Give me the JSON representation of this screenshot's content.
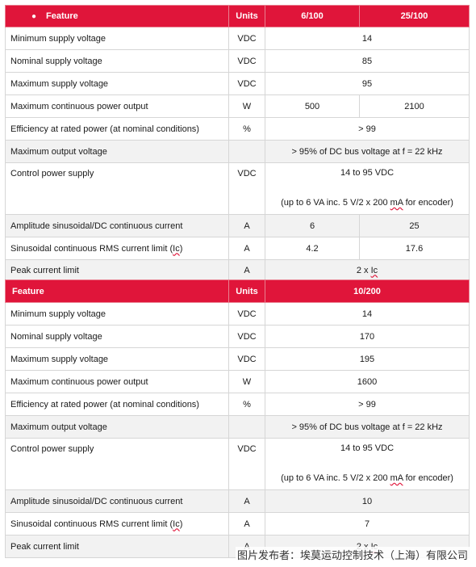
{
  "table1": {
    "header": {
      "feature": "Feature",
      "units": "Units",
      "col_a": "6/100",
      "col_b": "25/100"
    },
    "rows": [
      {
        "feature": "Minimum supply voltage",
        "units": "VDC",
        "value": "14"
      },
      {
        "feature": "Nominal supply voltage",
        "units": "VDC",
        "value": "85"
      },
      {
        "feature": "Maximum supply voltage",
        "units": "VDC",
        "value": "95"
      },
      {
        "feature": "Maximum continuous power output",
        "units": "W",
        "value_a": "500",
        "value_b": "2100"
      },
      {
        "feature": "Efficiency at rated power (at nominal conditions)",
        "units": "%",
        "value": "> 99"
      },
      {
        "feature": "Maximum output voltage",
        "units": "",
        "value": "> 95% of DC bus voltage at f = 22 kHz"
      },
      {
        "feature": "Control power supply",
        "units": "VDC",
        "value_line1": "14  to 95 VDC",
        "value_line2_pre": "(up to 6 VA inc. 5 V/2 x 200 ",
        "value_line2_mA": "mA",
        "value_line2_post": " for encoder)"
      },
      {
        "feature": "Amplitude sinusoidal/DC continuous current",
        "units": "A",
        "value_a": "6",
        "value_b": "25"
      },
      {
        "feature_pre": "Sinusoidal continuous RMS current limit (",
        "feature_ic": "Ic",
        "feature_post": ")",
        "units": "A",
        "value_a": "4.2",
        "value_b": "17.6"
      },
      {
        "feature": "Peak current limit",
        "units": "A",
        "value_pre": "2 x ",
        "value_ic": "Ic"
      }
    ]
  },
  "table2": {
    "header": {
      "feature": "Feature",
      "units": "Units",
      "col_a": "10/200"
    },
    "rows": [
      {
        "feature": "Minimum supply voltage",
        "units": "VDC",
        "value": "14"
      },
      {
        "feature": "Nominal supply voltage",
        "units": "VDC",
        "value": "170"
      },
      {
        "feature": "Maximum supply voltage",
        "units": "VDC",
        "value": "195"
      },
      {
        "feature": "Maximum continuous power output",
        "units": "W",
        "value": "1600"
      },
      {
        "feature": "Efficiency at rated power (at nominal conditions)",
        "units": "%",
        "value": "> 99"
      },
      {
        "feature": "Maximum output voltage",
        "units": "",
        "value": "> 95% of DC bus voltage at f = 22 kHz"
      },
      {
        "feature": "Control power supply",
        "units": "VDC",
        "value_line1": "14  to 95 VDC",
        "value_line2_pre": "(up to 6 VA inc. 5 V/2 x 200 ",
        "value_line2_mA": "mA",
        "value_line2_post": " for encoder)"
      },
      {
        "feature": "Amplitude sinusoidal/DC continuous current",
        "units": "A",
        "value": "10"
      },
      {
        "feature_pre": "Sinusoidal continuous RMS current limit (",
        "feature_ic": "Ic",
        "feature_post": ")",
        "units": "A",
        "value": "7"
      },
      {
        "feature": "Peak current limit",
        "units": "A",
        "value_pre": "2 x ",
        "value_ic": "Ic"
      }
    ]
  },
  "watermark": "图片发布者：埃莫运动控制技术（上海）有限公司",
  "colors": {
    "header_red": "#e0153a",
    "border": "#d6d6d6",
    "shade": "#f2f2f2"
  }
}
